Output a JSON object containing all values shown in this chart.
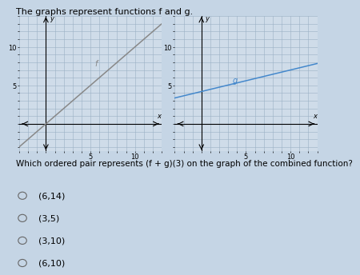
{
  "title": "The graphs represent functions f and g.",
  "question": "Which ordered pair represents (f + g)(3) on the graph of the combined function?",
  "options": [
    "(6,14)",
    "(3,5)",
    "(3,10)",
    "(6,10)"
  ],
  "selected_option": -1,
  "bg_color": "#c5d5e5",
  "graph_bg": "#cfdce9",
  "grid_color": "#9ab0c4",
  "f_color": "#888888",
  "g_color": "#4488cc",
  "f_slope": 1.0,
  "f_intercept": 0,
  "g_slope": 0.28,
  "g_intercept": 4.2,
  "left_xlim": [
    -3,
    13
  ],
  "left_ylim": [
    -3.5,
    14
  ],
  "right_xlim": [
    -3,
    13
  ],
  "right_ylim": [
    -3.5,
    14
  ],
  "tick_fontsize": 6,
  "question_fontsize": 7.5,
  "option_fontsize": 8,
  "title_fontsize": 8
}
